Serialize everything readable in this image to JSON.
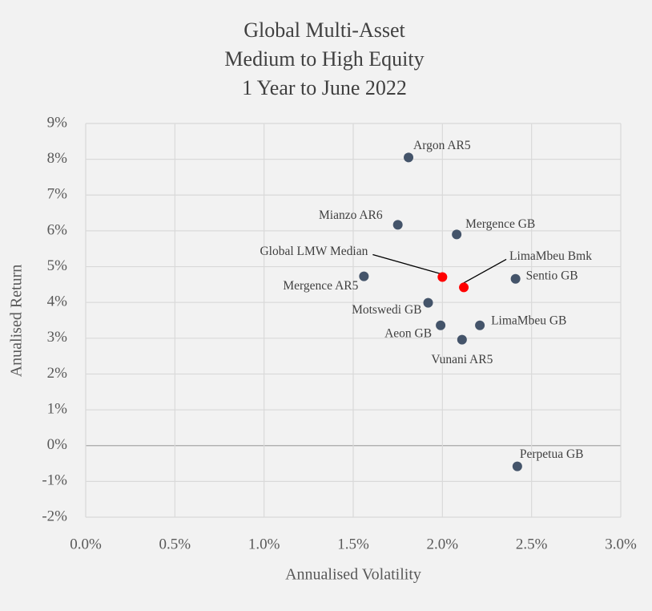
{
  "chart_data": {
    "type": "scatter",
    "title_lines": [
      "Global Multi-Asset",
      "Medium to High Equity",
      "1 Year to June 2022"
    ],
    "x_label": "Annualised Volatility",
    "y_label": "Anualised Return",
    "points": [
      {
        "label": "Argon AR5",
        "x": 1.81,
        "y": 8.05,
        "color": "#44546a"
      },
      {
        "label": "Mianzo AR6",
        "x": 1.75,
        "y": 6.17,
        "color": "#44546a"
      },
      {
        "label": "Mergence GB",
        "x": 2.08,
        "y": 5.9,
        "color": "#44546a"
      },
      {
        "label": "Global LMW Median",
        "x": 2.0,
        "y": 4.71,
        "color": "#ff0000"
      },
      {
        "label": "LimaMbeu Bmk",
        "x": 2.12,
        "y": 4.42,
        "color": "#ff0000"
      },
      {
        "label": "Mergence AR5",
        "x": 1.56,
        "y": 4.73,
        "color": "#44546a"
      },
      {
        "label": "Sentio GB",
        "x": 2.41,
        "y": 4.66,
        "color": "#44546a"
      },
      {
        "label": "Motswedi GB",
        "x": 1.92,
        "y": 3.99,
        "color": "#44546a"
      },
      {
        "label": "Aeon GB",
        "x": 1.99,
        "y": 3.36,
        "color": "#44546a"
      },
      {
        "label": "LimaMbeu GB",
        "x": 2.21,
        "y": 3.36,
        "color": "#44546a"
      },
      {
        "label": "Vunani AR5",
        "x": 2.11,
        "y": 2.96,
        "color": "#44546a"
      },
      {
        "label": "Perpetua GB",
        "x": 2.42,
        "y": -0.58,
        "color": "#44546a"
      }
    ],
    "xlim": [
      0,
      3
    ],
    "xticks": [
      {
        "value": 0,
        "label": "0.0%"
      },
      {
        "value": 0.5,
        "label": "0.5%"
      },
      {
        "value": 1,
        "label": "1.0%"
      },
      {
        "value": 1.5,
        "label": "1.5%"
      },
      {
        "value": 2,
        "label": "2.0%"
      },
      {
        "value": 2.5,
        "label": "2.5%"
      },
      {
        "value": 3,
        "label": "3.0%"
      }
    ],
    "ylim": [
      -2,
      9
    ],
    "yticks": [
      {
        "value": -2,
        "label": "-2%"
      },
      {
        "value": -1,
        "label": "-1%"
      },
      {
        "value": 0,
        "label": "0%"
      },
      {
        "value": 1,
        "label": "1%"
      },
      {
        "value": 2,
        "label": "2%"
      },
      {
        "value": 3,
        "label": "3%"
      },
      {
        "value": 4,
        "label": "4%"
      },
      {
        "value": 5,
        "label": "5%"
      },
      {
        "value": 6,
        "label": "6%"
      },
      {
        "value": 7,
        "label": "7%"
      },
      {
        "value": 8,
        "label": "8%"
      },
      {
        "value": 9,
        "label": "9%"
      }
    ],
    "grid": true
  }
}
